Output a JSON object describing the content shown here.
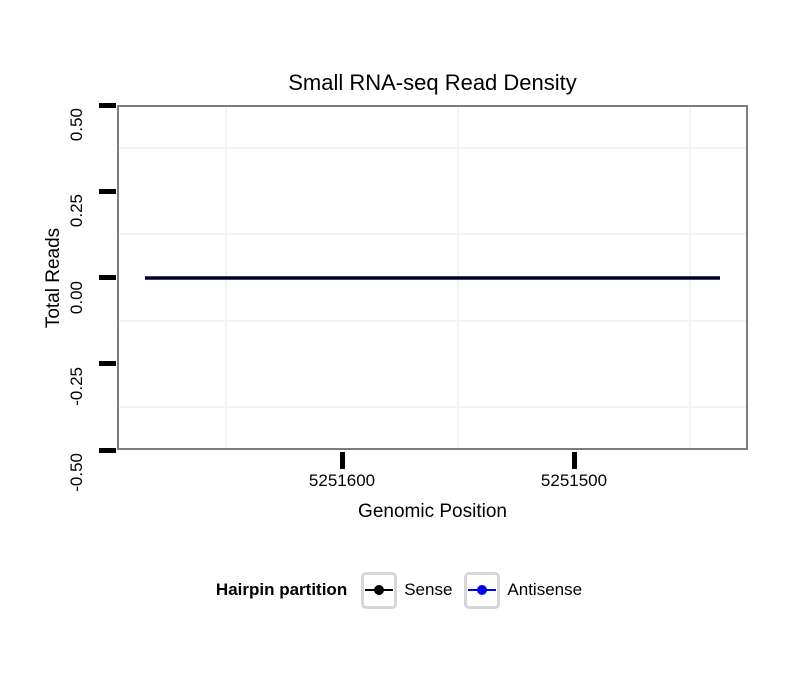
{
  "chart_data": {
    "type": "line",
    "title": "Small RNA-seq Read Density",
    "xlabel": "Genomic Position",
    "ylabel": "Total Reads",
    "x_axis": {
      "reversed": true,
      "range_left_to_right": [
        5251697,
        5251425
      ],
      "tick_values": [
        5251600,
        5251500
      ],
      "tick_labels": [
        "5251600",
        "5251500"
      ],
      "minor_gridlines": [
        5251650,
        5251550,
        5251450
      ]
    },
    "y_axis": {
      "range": [
        -0.5,
        0.5
      ],
      "tick_values": [
        0.5,
        0.25,
        0,
        -0.25,
        -0.5
      ],
      "tick_labels": [
        "0.50",
        "0.25",
        "0.00",
        "-0.25",
        "-0.50"
      ],
      "minor_gridlines": [
        0.375,
        0.125,
        -0.125,
        -0.375
      ]
    },
    "series": [
      {
        "name": "Sense",
        "color": "#000000",
        "x": [
          5251685,
          5251437
        ],
        "y": [
          0,
          0
        ]
      },
      {
        "name": "Antisense",
        "color": "#0000ee",
        "x": [
          5251685,
          5251437
        ],
        "y": [
          0,
          0
        ]
      }
    ],
    "legend": {
      "title": "Hairpin partition",
      "position": "bottom",
      "entries": [
        "Sense",
        "Antisense"
      ]
    },
    "grid": "minor-only",
    "panel_border_color": "#7d7d7d",
    "gridline_color": "#f4f4f4",
    "background_color": "#ffffff"
  }
}
